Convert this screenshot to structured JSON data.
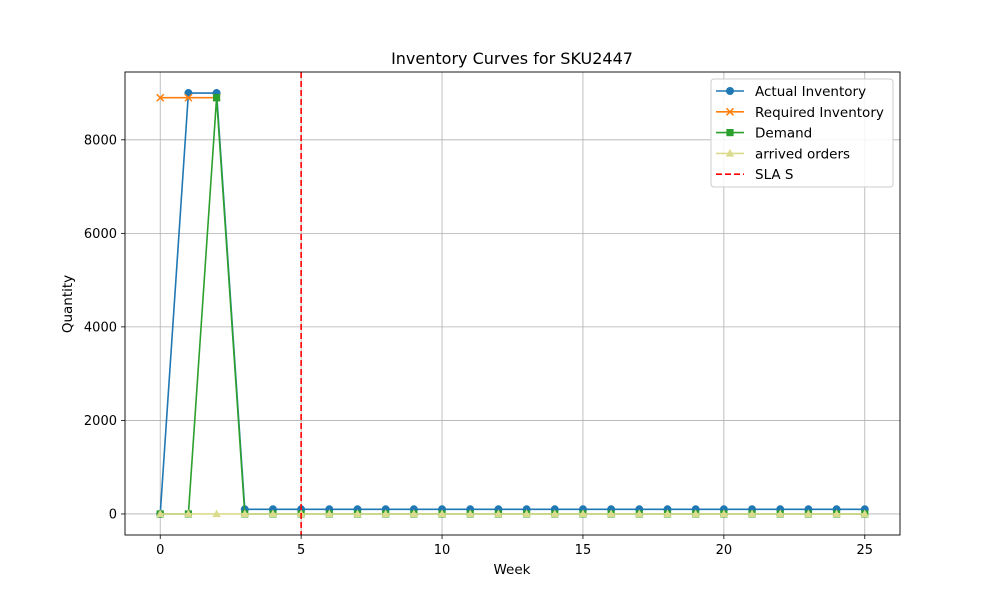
{
  "chart_data": {
    "type": "line",
    "title": "Inventory Curves for SKU2447",
    "xlabel": "Week",
    "ylabel": "Quantity",
    "xlim": [
      -1.25,
      26.25
    ],
    "ylim": [
      -450,
      9450
    ],
    "x_ticks": [
      0,
      5,
      10,
      15,
      20,
      25
    ],
    "y_ticks": [
      0,
      2000,
      4000,
      6000,
      8000
    ],
    "grid": true,
    "legend_position": "top-right",
    "series": [
      {
        "name": "Actual Inventory",
        "color": "#1f77b4",
        "marker": "circle",
        "x": [
          0,
          1,
          2,
          3,
          4,
          5,
          6,
          7,
          8,
          9,
          10,
          11,
          12,
          13,
          14,
          15,
          16,
          17,
          18,
          19,
          20,
          21,
          22,
          23,
          24,
          25
        ],
        "values": [
          0,
          9000,
          9000,
          100,
          100,
          100,
          100,
          100,
          100,
          100,
          100,
          100,
          100,
          100,
          100,
          100,
          100,
          100,
          100,
          100,
          100,
          100,
          100,
          100,
          100,
          100
        ]
      },
      {
        "name": "Required Inventory",
        "color": "#ff7f0e",
        "marker": "x",
        "x": [
          0,
          1,
          2
        ],
        "values": [
          8900,
          8900,
          8900
        ]
      },
      {
        "name": "Demand",
        "color": "#2ca02c",
        "marker": "square",
        "x": [
          0,
          1,
          2,
          3,
          4,
          5,
          6,
          7,
          8,
          9,
          10,
          11,
          12,
          13,
          14,
          15,
          16,
          17,
          18,
          19,
          20,
          21,
          22,
          23,
          24,
          25
        ],
        "values": [
          0,
          0,
          8900,
          0,
          0,
          0,
          0,
          0,
          0,
          0,
          0,
          0,
          0,
          0,
          0,
          0,
          0,
          0,
          0,
          0,
          0,
          0,
          0,
          0,
          0,
          0
        ]
      },
      {
        "name": "arrived orders",
        "color": "#dbdb8d",
        "marker": "triangle",
        "x": [
          0,
          1,
          2,
          3,
          4,
          5,
          6,
          7,
          8,
          9,
          10,
          11,
          12,
          13,
          14,
          15,
          16,
          17,
          18,
          19,
          20,
          21,
          22,
          23,
          24,
          25
        ],
        "values": [
          0,
          0,
          0,
          0,
          0,
          0,
          0,
          0,
          0,
          0,
          0,
          0,
          0,
          0,
          0,
          0,
          0,
          0,
          0,
          0,
          0,
          0,
          0,
          0,
          0,
          0
        ]
      }
    ],
    "vline": {
      "name": "SLA S",
      "x": 5,
      "color": "#ff0000",
      "style": "dashed"
    }
  }
}
